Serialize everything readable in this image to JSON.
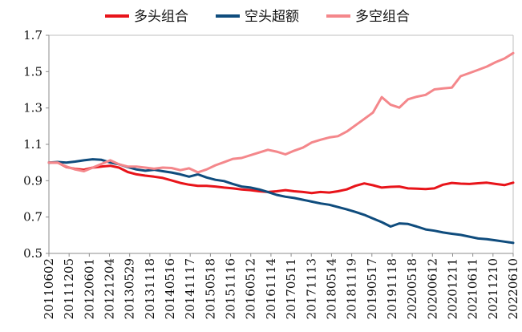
{
  "chart_data": {
    "type": "line",
    "title": "",
    "xlabel": "",
    "ylabel": "",
    "ylim": [
      0.5,
      1.7
    ],
    "yticks": [
      "0.5",
      "0.7",
      "0.9",
      "1.1",
      "1.3",
      "1.5",
      "1.7"
    ],
    "grid": false,
    "legend_position": "top",
    "x_tick_labels": [
      "20110602",
      "20111205",
      "20120601",
      "20121204",
      "20130529",
      "20131118",
      "20140516",
      "20141117",
      "20150518",
      "20151116",
      "20160512",
      "20161114",
      "20170511",
      "20171113",
      "20180514",
      "20181119",
      "20190517",
      "20191118",
      "20200518",
      "20200612",
      "20201211",
      "20210611",
      "20211210",
      "20220610"
    ],
    "series": [
      {
        "name": "多头组合",
        "color": "#e8141a",
        "values": [
          1.0,
          1.0,
          0.975,
          0.965,
          0.96,
          0.972,
          0.978,
          0.982,
          0.972,
          0.948,
          0.935,
          0.928,
          0.922,
          0.915,
          0.902,
          0.888,
          0.878,
          0.872,
          0.872,
          0.868,
          0.862,
          0.858,
          0.852,
          0.848,
          0.842,
          0.838,
          0.842,
          0.848,
          0.842,
          0.838,
          0.832,
          0.838,
          0.835,
          0.842,
          0.852,
          0.872,
          0.885,
          0.875,
          0.862,
          0.866,
          0.868,
          0.858,
          0.856,
          0.854,
          0.858,
          0.878,
          0.888,
          0.884,
          0.882,
          0.886,
          0.889,
          0.882,
          0.876,
          0.889
        ]
      },
      {
        "name": "空头超额",
        "color": "#0f4c7d",
        "values": [
          1.0,
          1.003,
          1.0,
          1.005,
          1.012,
          1.018,
          1.015,
          1.0,
          0.99,
          0.975,
          0.962,
          0.955,
          0.96,
          0.952,
          0.945,
          0.935,
          0.922,
          0.935,
          0.918,
          0.905,
          0.898,
          0.882,
          0.868,
          0.862,
          0.852,
          0.838,
          0.822,
          0.812,
          0.805,
          0.795,
          0.785,
          0.775,
          0.768,
          0.755,
          0.742,
          0.728,
          0.712,
          0.692,
          0.672,
          0.648,
          0.665,
          0.662,
          0.648,
          0.632,
          0.625,
          0.615,
          0.608,
          0.602,
          0.592,
          0.582,
          0.578,
          0.572,
          0.565,
          0.558
        ]
      },
      {
        "name": "多空组合",
        "color": "#f4878b",
        "values": [
          1.0,
          1.0,
          0.978,
          0.962,
          0.952,
          0.972,
          0.992,
          1.012,
          0.99,
          0.978,
          0.978,
          0.972,
          0.966,
          0.972,
          0.97,
          0.958,
          0.968,
          0.946,
          0.962,
          0.985,
          1.002,
          1.02,
          1.025,
          1.04,
          1.055,
          1.07,
          1.06,
          1.045,
          1.065,
          1.082,
          1.11,
          1.125,
          1.138,
          1.145,
          1.17,
          1.205,
          1.24,
          1.275,
          1.36,
          1.318,
          1.302,
          1.348,
          1.362,
          1.372,
          1.402,
          1.408,
          1.412,
          1.475,
          1.492,
          1.51,
          1.528,
          1.552,
          1.572,
          1.602
        ]
      }
    ]
  }
}
